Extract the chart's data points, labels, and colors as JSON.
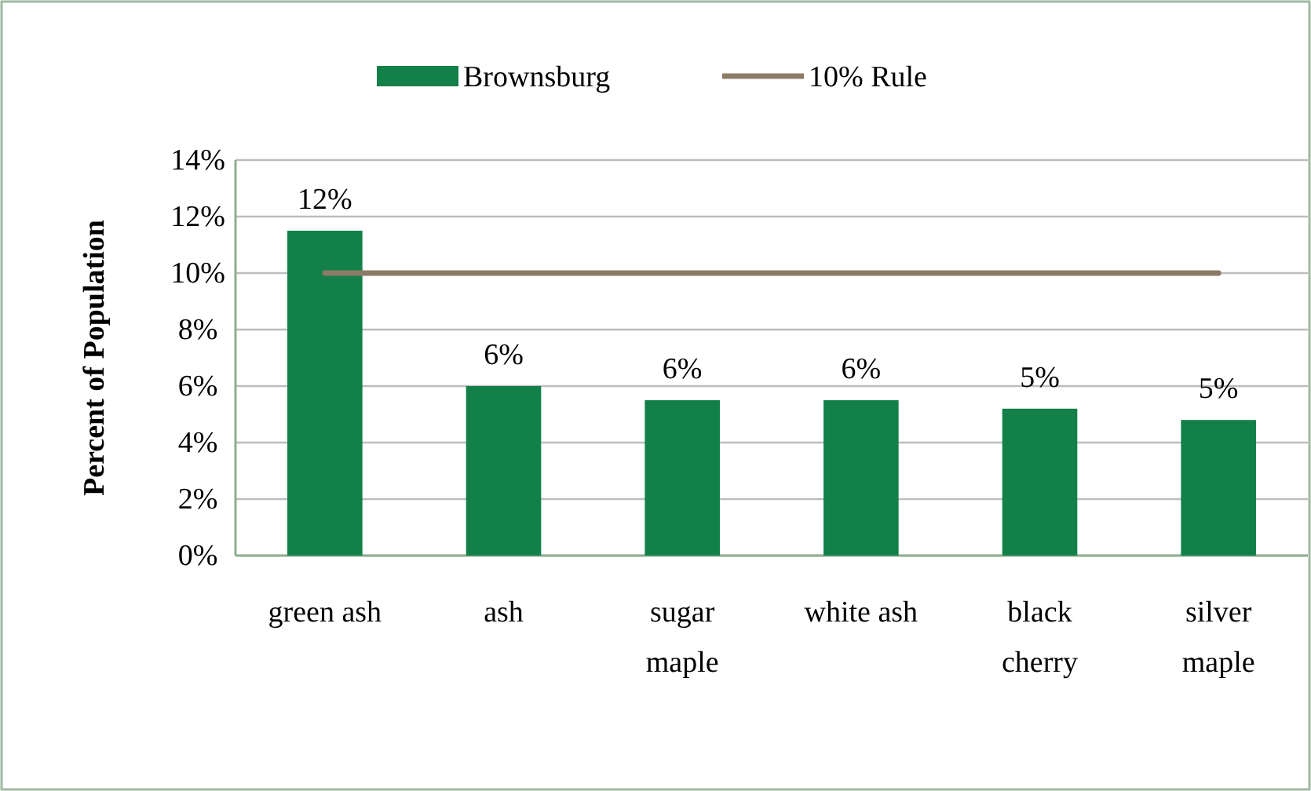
{
  "chart_data": {
    "type": "bar",
    "ylabel": "Percent of Population",
    "categories": [
      "green ash",
      "ash",
      "sugar maple",
      "white ash",
      "black cherry",
      "silver maple"
    ],
    "series": [
      {
        "name": "Brownsburg",
        "color": "#138049",
        "values": [
          11.5,
          6.0,
          5.5,
          5.5,
          5.2,
          4.8
        ],
        "value_labels": [
          "12%",
          "6%",
          "6%",
          "6%",
          "5%",
          "5%"
        ]
      },
      {
        "name": "10% Rule",
        "type": "line",
        "color": "#8c7b66",
        "values": [
          10,
          10,
          10,
          10,
          10,
          10
        ]
      }
    ],
    "ylim": [
      0,
      14
    ],
    "yticks": [
      {
        "value": 0,
        "label": "0%"
      },
      {
        "value": 2,
        "label": "2%"
      },
      {
        "value": 4,
        "label": "4%"
      },
      {
        "value": 6,
        "label": "6%"
      },
      {
        "value": 8,
        "label": "8%"
      },
      {
        "value": 10,
        "label": "10%"
      },
      {
        "value": 12,
        "label": "12%"
      },
      {
        "value": 14,
        "label": "14%"
      }
    ],
    "grid": "y",
    "legend": "top",
    "marker": "none",
    "line_style": "solid"
  }
}
